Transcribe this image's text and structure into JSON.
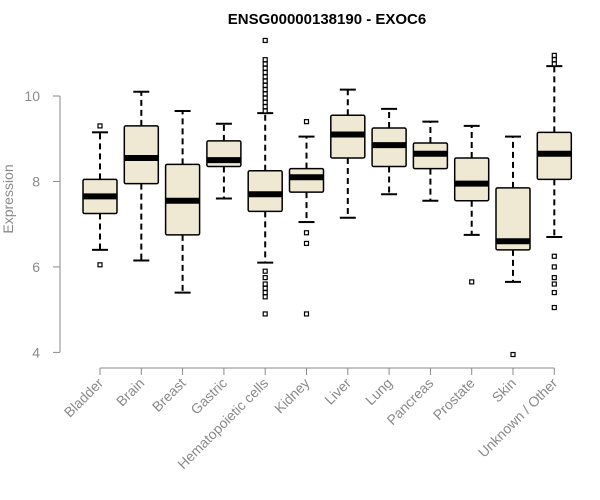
{
  "chart_data": {
    "type": "boxplot",
    "title": "ENSG00000138190 - EXOC6",
    "xlabel": "",
    "ylabel": "Expression",
    "ylim": [
      3.8,
      11.4
    ],
    "yticks": [
      4,
      6,
      8,
      10
    ],
    "grid": false,
    "legend": "none",
    "categories": [
      "Bladder",
      "Brain",
      "Breast",
      "Gastric",
      "Hematopoietic cells",
      "Kidney",
      "Liver",
      "Lung",
      "Pancreas",
      "Prostate",
      "Skin",
      "Unknown / Other"
    ],
    "boxes": [
      {
        "whisker_low": 6.4,
        "q1": 7.25,
        "median": 7.65,
        "q3": 8.05,
        "whisker_high": 9.15,
        "outliers": [
          6.05,
          9.3
        ]
      },
      {
        "whisker_low": 6.15,
        "q1": 7.95,
        "median": 8.55,
        "q3": 9.3,
        "whisker_high": 10.1,
        "outliers": []
      },
      {
        "whisker_low": 5.4,
        "q1": 6.75,
        "median": 7.55,
        "q3": 8.4,
        "whisker_high": 9.65,
        "outliers": []
      },
      {
        "whisker_low": 7.6,
        "q1": 8.35,
        "median": 8.5,
        "q3": 8.95,
        "whisker_high": 9.35,
        "outliers": []
      },
      {
        "whisker_low": 6.1,
        "q1": 7.3,
        "median": 7.7,
        "q3": 8.25,
        "whisker_high": 9.6,
        "outliers": [
          4.9,
          5.3,
          5.4,
          5.5,
          5.6,
          5.75,
          5.9,
          9.65,
          9.75,
          9.85,
          9.95,
          10.05,
          10.15,
          10.25,
          10.35,
          10.45,
          10.55,
          10.65,
          10.75,
          10.85,
          11.3
        ]
      },
      {
        "whisker_low": 7.05,
        "q1": 7.75,
        "median": 8.1,
        "q3": 8.3,
        "whisker_high": 9.05,
        "outliers": [
          4.9,
          6.55,
          6.8,
          9.4
        ]
      },
      {
        "whisker_low": 7.15,
        "q1": 8.55,
        "median": 9.1,
        "q3": 9.55,
        "whisker_high": 10.15,
        "outliers": []
      },
      {
        "whisker_low": 7.7,
        "q1": 8.35,
        "median": 8.85,
        "q3": 9.25,
        "whisker_high": 9.7,
        "outliers": []
      },
      {
        "whisker_low": 7.55,
        "q1": 8.3,
        "median": 8.65,
        "q3": 8.9,
        "whisker_high": 9.4,
        "outliers": []
      },
      {
        "whisker_low": 6.75,
        "q1": 7.55,
        "median": 7.95,
        "q3": 8.55,
        "whisker_high": 9.3,
        "outliers": [
          5.65
        ]
      },
      {
        "whisker_low": 5.65,
        "q1": 6.4,
        "median": 6.6,
        "q3": 7.85,
        "whisker_high": 9.05,
        "outliers": [
          3.95
        ]
      },
      {
        "whisker_low": 6.7,
        "q1": 8.05,
        "median": 8.65,
        "q3": 9.15,
        "whisker_high": 10.7,
        "outliers": [
          5.05,
          5.4,
          5.6,
          5.75,
          6.0,
          6.25,
          10.75,
          10.85,
          10.95
        ]
      }
    ],
    "colors": {
      "box_fill": "#efe8d3",
      "box_stroke": "#000000",
      "median": "#000000",
      "axis": "#8a8a8a"
    }
  }
}
